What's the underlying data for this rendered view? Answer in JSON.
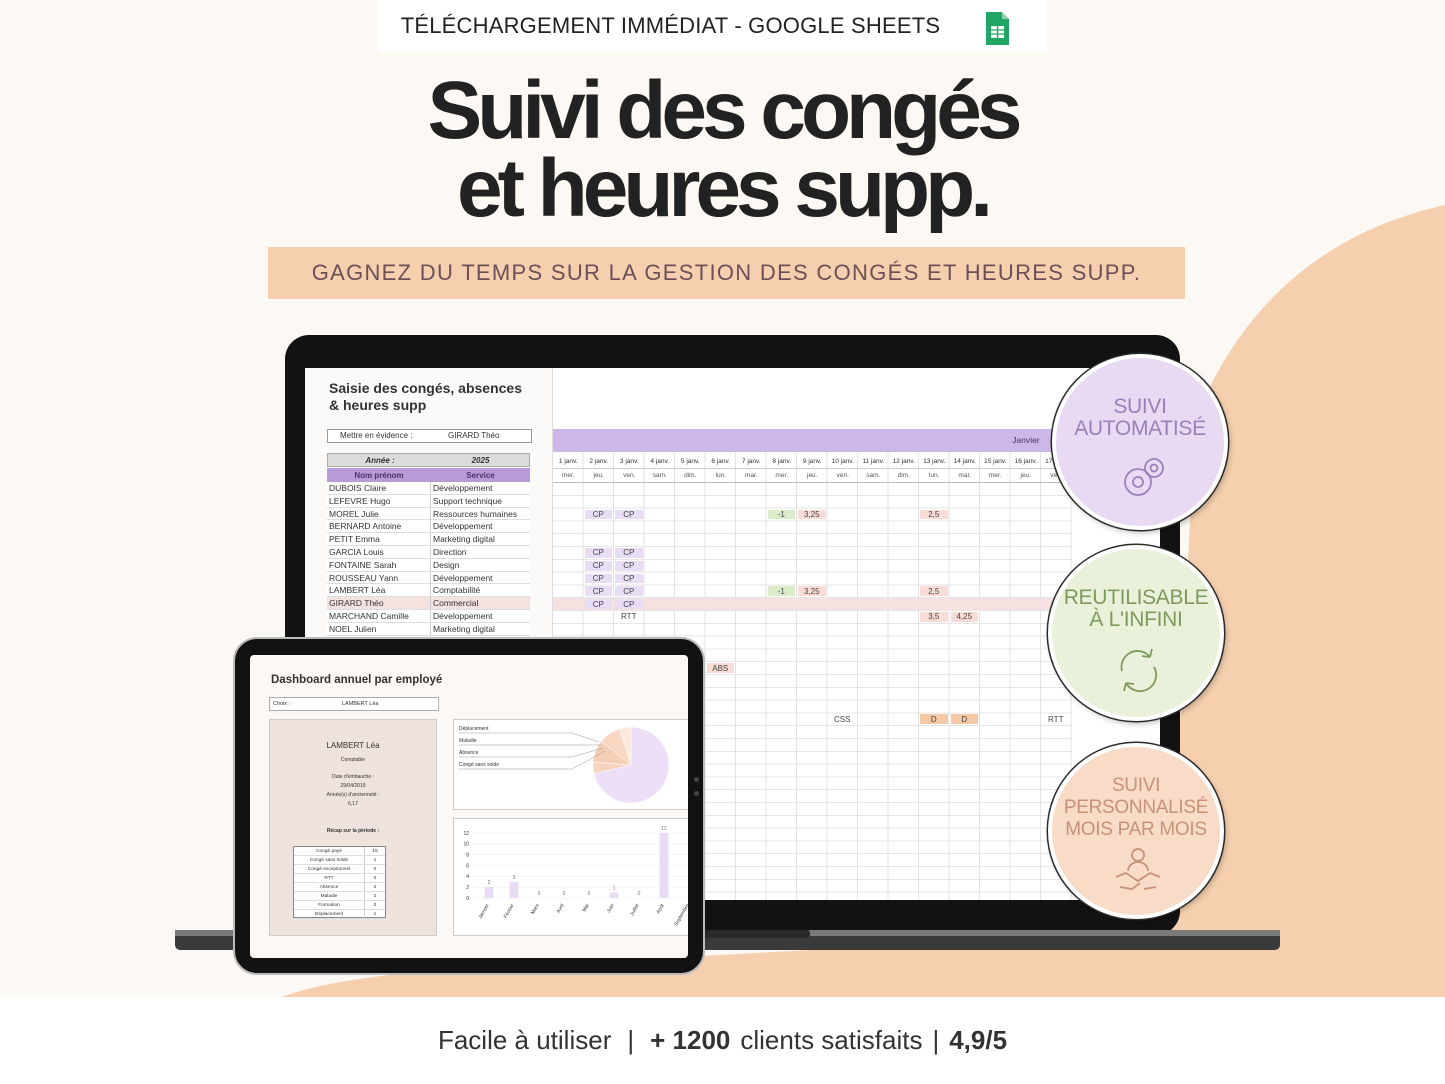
{
  "banner": {
    "text": "TÉLÉCHARGEMENT IMMÉDIAT - GOOGLE SHEETS"
  },
  "title": {
    "line1": "Suivi des congés",
    "line2": "et heures supp."
  },
  "subtitle": "GAGNEZ DU TEMPS SUR LA GESTION DES CONGÉS ET HEURES SUPP.",
  "sheet": {
    "title": "Saisie des congés, absences & heures supp",
    "highlight": {
      "label": "Mettre en évidence :",
      "value": "GIRARD Théo"
    },
    "year": {
      "label": "Année :",
      "value": "2025"
    },
    "columns": [
      "Nom prénom",
      "Service"
    ],
    "employees": [
      [
        "DUBOIS Claire",
        "Développement"
      ],
      [
        "LEFEVRE Hugo",
        "Support technique"
      ],
      [
        "MOREL Julie",
        "Ressources humaines"
      ],
      [
        "BERNARD Antoine",
        "Développement"
      ],
      [
        "PETIT Emma",
        "Marketing digital"
      ],
      [
        "GARCIA Louis",
        "Direction"
      ],
      [
        "FONTAINE Sarah",
        "Design"
      ],
      [
        "ROUSSEAU Yann",
        "Développement"
      ],
      [
        "LAMBERT Léa",
        "Comptabilité"
      ],
      [
        "GIRARD Théo",
        "Commercial"
      ],
      [
        "MARCHAND Camille",
        "Développement"
      ],
      [
        "NOEL Julien",
        "Marketing digital"
      ]
    ],
    "month": "Janvier",
    "dates": [
      "1 janv.",
      "2 janv.",
      "3 janv.",
      "4 janv.",
      "5 janv.",
      "6 janv.",
      "7 janv.",
      "8 janv.",
      "9 janv.",
      "10 janv.",
      "11 janv.",
      "12 janv.",
      "13 janv.",
      "14 janv.",
      "15 janv.",
      "16 janv.",
      "17 janv."
    ],
    "days": [
      "mer.",
      "jeu.",
      "ven.",
      "sam.",
      "dim.",
      "lun.",
      "mar.",
      "mer.",
      "jeu.",
      "ven.",
      "sam.",
      "dim.",
      "lun.",
      "mar.",
      "mer.",
      "jeu.",
      "ven."
    ],
    "cells": [
      [
        null,
        null,
        null,
        null,
        null,
        null,
        null,
        null,
        null,
        null,
        null,
        null,
        null,
        null,
        null,
        null,
        null
      ],
      [
        null,
        null,
        null,
        null,
        null,
        null,
        null,
        null,
        null,
        null,
        null,
        null,
        null,
        null,
        null,
        null,
        null
      ],
      [
        null,
        {
          "text": "CP",
          "color": "#e9ddf6"
        },
        {
          "text": "CP",
          "color": "#e9ddf6"
        },
        null,
        null,
        null,
        null,
        {
          "text": "-1",
          "color": "#dcebc9"
        },
        {
          "text": "3,25",
          "color": "#f8dcd5"
        },
        null,
        null,
        null,
        {
          "text": "2,5",
          "color": "#f8dcd5"
        },
        null,
        null,
        null,
        null
      ],
      [
        null,
        null,
        null,
        null,
        null,
        null,
        null,
        null,
        null,
        null,
        null,
        null,
        null,
        null,
        null,
        null,
        null
      ],
      [
        null,
        null,
        null,
        null,
        null,
        null,
        null,
        null,
        null,
        null,
        null,
        null,
        null,
        null,
        null,
        null,
        null
      ],
      [
        null,
        {
          "text": "CP",
          "color": "#e9ddf6"
        },
        {
          "text": "CP",
          "color": "#e9ddf6"
        },
        null,
        null,
        null,
        null,
        null,
        null,
        null,
        null,
        null,
        null,
        null,
        null,
        null,
        null
      ],
      [
        null,
        {
          "text": "CP",
          "color": "#e9ddf6"
        },
        {
          "text": "CP",
          "color": "#e9ddf6"
        },
        null,
        null,
        null,
        null,
        null,
        null,
        null,
        null,
        null,
        null,
        null,
        null,
        null,
        null
      ],
      [
        null,
        {
          "text": "CP",
          "color": "#e9ddf6"
        },
        {
          "text": "CP",
          "color": "#e9ddf6"
        },
        null,
        null,
        null,
        null,
        null,
        null,
        null,
        null,
        null,
        null,
        null,
        null,
        null,
        null
      ],
      [
        null,
        {
          "text": "CP",
          "color": "#e9ddf6"
        },
        {
          "text": "CP",
          "color": "#e9ddf6"
        },
        null,
        null,
        null,
        null,
        {
          "text": "-1",
          "color": "#dcebc9"
        },
        {
          "text": "3,25",
          "color": "#f8dcd5"
        },
        null,
        null,
        null,
        {
          "text": "2,5",
          "color": "#f8dcd5"
        },
        null,
        null,
        null,
        null
      ],
      [
        null,
        {
          "text": "CP",
          "color": "#e9ddf6"
        },
        {
          "text": "CP",
          "color": "#e9ddf6"
        },
        null,
        null,
        null,
        null,
        null,
        null,
        null,
        null,
        null,
        null,
        null,
        null,
        null,
        null
      ],
      [
        null,
        null,
        {
          "text": "RTT"
        },
        null,
        null,
        null,
        null,
        null,
        null,
        null,
        null,
        null,
        {
          "text": "3,5",
          "color": "#f8dcd5"
        },
        {
          "text": "4,25",
          "color": "#f8dcd5"
        },
        null,
        null,
        null
      ],
      [
        null,
        null,
        null,
        null,
        null,
        null,
        null,
        null,
        null,
        null,
        null,
        null,
        null,
        null,
        null,
        null,
        null
      ],
      [
        null,
        null,
        null,
        null,
        null,
        null,
        null,
        null,
        null,
        null,
        null,
        null,
        null,
        null,
        null,
        null,
        null
      ],
      [
        null,
        null,
        null,
        null,
        null,
        null,
        null,
        null,
        null,
        null,
        null,
        null,
        null,
        null,
        null,
        null,
        null
      ],
      [
        null,
        null,
        null,
        null,
        null,
        {
          "text": "ABS",
          "color": "#f8dcd5"
        },
        null,
        null,
        null,
        null,
        null,
        null,
        null,
        null,
        null,
        null,
        null
      ],
      [
        null,
        null,
        null,
        null,
        null,
        null,
        null,
        null,
        null,
        null,
        null,
        null,
        null,
        null,
        null,
        null,
        null
      ],
      [
        null,
        null,
        null,
        null,
        null,
        null,
        null,
        null,
        null,
        null,
        null,
        null,
        null,
        null,
        null,
        null,
        null
      ],
      [
        null,
        null,
        null,
        null,
        null,
        null,
        null,
        null,
        null,
        null,
        null,
        null,
        null,
        null,
        null,
        null,
        null
      ],
      [
        null,
        null,
        null,
        null,
        null,
        null,
        null,
        null,
        null,
        {
          "text": "CSS"
        },
        null,
        null,
        {
          "text": "D",
          "color": "#f6c9a6"
        },
        {
          "text": "D",
          "color": "#f6c9a6"
        },
        null,
        null,
        {
          "text": "RTT"
        }
      ]
    ]
  },
  "dashboard": {
    "title": "Dashboard annuel par employé",
    "choice": {
      "label": "Choix :",
      "value": "LAMBERT Léa"
    },
    "card": {
      "name": "LAMBERT Léa",
      "role": "Comptable",
      "hire_label": "Date d'embauche :",
      "hire_date": "29/04/2019",
      "seniority_label": "Année(s) d'ancienneté :",
      "seniority": "6,17",
      "recap_label": "Récap sur la période :",
      "recap": {
        "categories": [
          "Congé payé",
          "Congé sans solde",
          "Congé exceptionnel",
          "RTT",
          "Absence",
          "Maladie",
          "Formation",
          "Déplacement"
        ],
        "values": [
          15,
          1,
          0,
          0,
          2,
          2,
          0,
          1
        ]
      }
    },
    "pie": {
      "type": "pie",
      "labels": [
        "Déplacement",
        "Maladie",
        "Absence",
        "Congé sans solde"
      ],
      "colors": [
        "#ecdff7",
        "#f6d2bf",
        "#f3c4a6",
        "#f9e3d2",
        "#f4cdb4",
        "#f8d8c4",
        "#f2c0a0",
        "#fbe9dc"
      ]
    },
    "bars": {
      "type": "bar",
      "categories": [
        "Janvier",
        "Février",
        "Mars",
        "Avril",
        "Mai",
        "Juin",
        "Juillet",
        "Août",
        "Septembre"
      ],
      "values": [
        2,
        3,
        0,
        0,
        0,
        1,
        0,
        12,
        null
      ],
      "color": "#e9dbf5",
      "ylim": [
        0,
        12
      ],
      "yticks": [
        0,
        2,
        4,
        6,
        8,
        10,
        12
      ]
    }
  },
  "badges": [
    {
      "lines": [
        "SUIVI",
        "AUTOMATISÉ"
      ],
      "color": "#e8daf3",
      "text_color": "#9b80b8"
    },
    {
      "lines": [
        "REUTILISABLE",
        "À L'INFINI"
      ],
      "color": "#e9f1da",
      "text_color": "#7f9b5c"
    },
    {
      "lines": [
        "SUIVI",
        "PERSONNALISÉ",
        "MOIS PAR MOIS"
      ],
      "color": "#f8dcc8",
      "text_color": "#c8917a"
    }
  ],
  "footer": {
    "part1": "Facile à utiliser",
    "separator": "|",
    "count": "+ 1200",
    "part2": "clients satisfaits",
    "rating": "4,9/5"
  }
}
